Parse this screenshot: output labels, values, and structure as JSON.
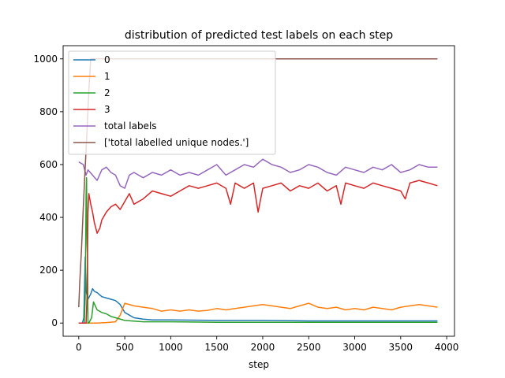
{
  "chart_data": {
    "type": "line",
    "title": "distribution of predicted test labels on each step",
    "xlabel": "step",
    "ylabel": "",
    "xlim": [
      -170,
      4085
    ],
    "ylim": [
      -50,
      1050
    ],
    "xticks": [
      0,
      500,
      1000,
      1500,
      2000,
      2500,
      3000,
      3500,
      4000
    ],
    "yticks": [
      0,
      200,
      400,
      600,
      800,
      1000
    ],
    "grid": false,
    "legend_position": "upper-left",
    "series": [
      {
        "name": "0",
        "color": "#1f77b4",
        "x": [
          0,
          40,
          55,
          70,
          80,
          100,
          130,
          150,
          170,
          200,
          250,
          300,
          350,
          400,
          450,
          500,
          600,
          700,
          800,
          1000,
          1500,
          2000,
          2500,
          3000,
          3500,
          3900
        ],
        "y": [
          0,
          0,
          20,
          250,
          120,
          90,
          110,
          130,
          120,
          115,
          100,
          95,
          90,
          85,
          70,
          40,
          20,
          15,
          12,
          12,
          10,
          10,
          8,
          8,
          8,
          8
        ]
      },
      {
        "name": "1",
        "color": "#ff7f0e",
        "x": [
          0,
          100,
          200,
          300,
          400,
          450,
          500,
          600,
          700,
          800,
          900,
          1000,
          1100,
          1200,
          1300,
          1400,
          1500,
          1600,
          1700,
          1800,
          1900,
          2000,
          2100,
          2200,
          2300,
          2400,
          2500,
          2600,
          2700,
          2800,
          2900,
          3000,
          3100,
          3200,
          3300,
          3400,
          3500,
          3600,
          3700,
          3800,
          3900
        ],
        "y": [
          0,
          0,
          0,
          2,
          5,
          30,
          75,
          65,
          60,
          55,
          45,
          50,
          45,
          50,
          45,
          48,
          55,
          50,
          55,
          60,
          65,
          70,
          65,
          60,
          55,
          65,
          75,
          60,
          55,
          60,
          50,
          55,
          50,
          60,
          55,
          50,
          60,
          65,
          70,
          65,
          60
        ]
      },
      {
        "name": "2",
        "color": "#2ca02c",
        "x": [
          0,
          60,
          70,
          80,
          85,
          90,
          95,
          100,
          110,
          140,
          160,
          200,
          250,
          300,
          350,
          400,
          500,
          700,
          1000,
          1500,
          2000,
          2500,
          3000,
          3500,
          3900
        ],
        "y": [
          0,
          0,
          100,
          480,
          550,
          300,
          250,
          0,
          0,
          20,
          80,
          50,
          40,
          35,
          25,
          20,
          10,
          5,
          5,
          3,
          3,
          3,
          3,
          3,
          3
        ]
      },
      {
        "name": "3",
        "color": "#d62728",
        "x": [
          0,
          80,
          90,
          100,
          110,
          130,
          150,
          170,
          200,
          230,
          250,
          300,
          350,
          400,
          450,
          500,
          550,
          600,
          700,
          800,
          900,
          1000,
          1100,
          1200,
          1300,
          1400,
          1500,
          1600,
          1650,
          1700,
          1750,
          1800,
          1900,
          1950,
          2000,
          2100,
          2200,
          2300,
          2400,
          2500,
          2600,
          2700,
          2800,
          2850,
          2900,
          3000,
          3100,
          3200,
          3300,
          3400,
          3500,
          3550,
          3600,
          3700,
          3800,
          3900
        ],
        "y": [
          0,
          0,
          100,
          420,
          490,
          450,
          420,
          380,
          340,
          360,
          390,
          420,
          440,
          450,
          430,
          460,
          490,
          450,
          470,
          500,
          490,
          480,
          500,
          520,
          510,
          520,
          530,
          510,
          450,
          530,
          520,
          510,
          530,
          420,
          510,
          520,
          530,
          500,
          520,
          510,
          530,
          500,
          520,
          450,
          530,
          520,
          510,
          530,
          520,
          510,
          500,
          470,
          530,
          540,
          530,
          520
        ]
      },
      {
        "name": "total labels",
        "color": "#9467bd",
        "x": [
          0,
          50,
          80,
          100,
          150,
          200,
          250,
          300,
          350,
          400,
          450,
          500,
          550,
          600,
          700,
          800,
          900,
          1000,
          1100,
          1200,
          1300,
          1400,
          1500,
          1600,
          1700,
          1800,
          1900,
          2000,
          2100,
          2200,
          2300,
          2400,
          2500,
          2600,
          2700,
          2800,
          2900,
          3000,
          3100,
          3200,
          3300,
          3400,
          3500,
          3600,
          3700,
          3800,
          3900
        ],
        "y": [
          610,
          600,
          560,
          580,
          560,
          540,
          580,
          590,
          570,
          560,
          520,
          510,
          560,
          570,
          550,
          570,
          560,
          580,
          560,
          570,
          560,
          580,
          600,
          560,
          580,
          600,
          590,
          620,
          600,
          590,
          570,
          580,
          600,
          590,
          570,
          560,
          590,
          580,
          570,
          590,
          580,
          600,
          570,
          580,
          600,
          590,
          590
        ]
      },
      {
        "name": "['total labelled unique nodes.']",
        "color": "#8c564b",
        "x": [
          0,
          10,
          30,
          50,
          70,
          90,
          110,
          130,
          150,
          3900
        ],
        "y": [
          60,
          150,
          280,
          440,
          590,
          730,
          880,
          1000,
          1000,
          1000
        ]
      }
    ]
  }
}
